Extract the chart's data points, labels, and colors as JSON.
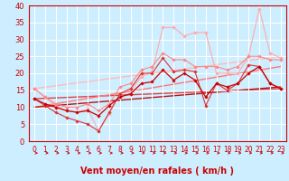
{
  "background_color": "#cceeff",
  "grid_color": "#ffffff",
  "xlabel": "Vent moyen/en rafales ( km/h )",
  "xlabel_color": "#cc0000",
  "xlabel_fontsize": 7,
  "xtick_fontsize": 5.5,
  "ytick_fontsize": 6,
  "xlim": [
    -0.5,
    23.5
  ],
  "ylim": [
    0,
    40
  ],
  "yticks": [
    0,
    5,
    10,
    15,
    20,
    25,
    30,
    35,
    40
  ],
  "xticks": [
    0,
    1,
    2,
    3,
    4,
    5,
    6,
    7,
    8,
    9,
    10,
    11,
    12,
    13,
    14,
    15,
    16,
    17,
    18,
    19,
    20,
    21,
    22,
    23
  ],
  "lines": [
    {
      "x": [
        0,
        1,
        2,
        3,
        4,
        5,
        6,
        7,
        8,
        9,
        10,
        11,
        12,
        13,
        14,
        15,
        16,
        17,
        18,
        19,
        20,
        21,
        22,
        23
      ],
      "y": [
        15.5,
        13,
        10.5,
        9,
        8.5,
        9.5,
        3,
        8,
        14,
        15,
        19,
        20.5,
        33.5,
        33.5,
        31,
        32,
        32,
        20,
        20,
        20,
        25,
        39,
        26,
        24.5
      ],
      "color": "#ffaaaa",
      "marker": "D",
      "markersize": 1.8,
      "linewidth": 0.8,
      "zorder": 2
    },
    {
      "x": [
        0,
        1,
        2,
        3,
        4,
        5,
        6,
        7,
        8,
        9,
        10,
        11,
        12,
        13,
        14,
        15,
        16,
        17,
        18,
        19,
        20,
        21,
        22,
        23
      ],
      "y": [
        15.5,
        13,
        11,
        10,
        10,
        11,
        9,
        11,
        16,
        17,
        21,
        22,
        26,
        24,
        24,
        22,
        22,
        22,
        21,
        22,
        25,
        25,
        24,
        24
      ],
      "color": "#ff8888",
      "marker": "D",
      "markersize": 1.8,
      "linewidth": 0.8,
      "zorder": 2
    },
    {
      "x": [
        0,
        1,
        2,
        3,
        4,
        5,
        6,
        7,
        8,
        9,
        10,
        11,
        12,
        13,
        14,
        15,
        16,
        17,
        18,
        19,
        20,
        21,
        22,
        23
      ],
      "y": [
        12.5,
        10.5,
        8.5,
        7,
        6,
        5,
        3,
        8.5,
        14,
        15.5,
        20,
        20,
        24.5,
        20.5,
        21,
        20.5,
        10.5,
        17,
        15,
        17,
        22.5,
        22,
        17,
        15.5
      ],
      "color": "#dd3333",
      "marker": "D",
      "markersize": 1.8,
      "linewidth": 0.8,
      "zorder": 3
    },
    {
      "x": [
        0,
        1,
        2,
        3,
        4,
        5,
        6,
        7,
        8,
        9,
        10,
        11,
        12,
        13,
        14,
        15,
        16,
        17,
        18,
        19,
        20,
        21,
        22,
        23
      ],
      "y": [
        12.5,
        11,
        10,
        9,
        8.5,
        9,
        7.5,
        10.5,
        13,
        14,
        17,
        17.5,
        21,
        18,
        20,
        18,
        13,
        17,
        16,
        17,
        20,
        22,
        17,
        15.5
      ],
      "color": "#cc0000",
      "marker": "D",
      "markersize": 1.8,
      "linewidth": 0.9,
      "zorder": 4
    },
    {
      "x": [
        0,
        23
      ],
      "y": [
        15.5,
        25
      ],
      "color": "#ffbbbb",
      "marker": null,
      "markersize": 0,
      "linewidth": 1.0,
      "zorder": 1
    },
    {
      "x": [
        0,
        23
      ],
      "y": [
        12.5,
        15.5
      ],
      "color": "#dd4444",
      "marker": null,
      "markersize": 0,
      "linewidth": 1.0,
      "zorder": 1
    },
    {
      "x": [
        0,
        23
      ],
      "y": [
        10,
        22
      ],
      "color": "#ff7777",
      "marker": null,
      "markersize": 0,
      "linewidth": 1.0,
      "zorder": 1
    },
    {
      "x": [
        0,
        23
      ],
      "y": [
        10,
        16
      ],
      "color": "#bb1111",
      "marker": null,
      "markersize": 0,
      "linewidth": 1.0,
      "zorder": 1
    }
  ],
  "arrow_color": "#cc0000"
}
